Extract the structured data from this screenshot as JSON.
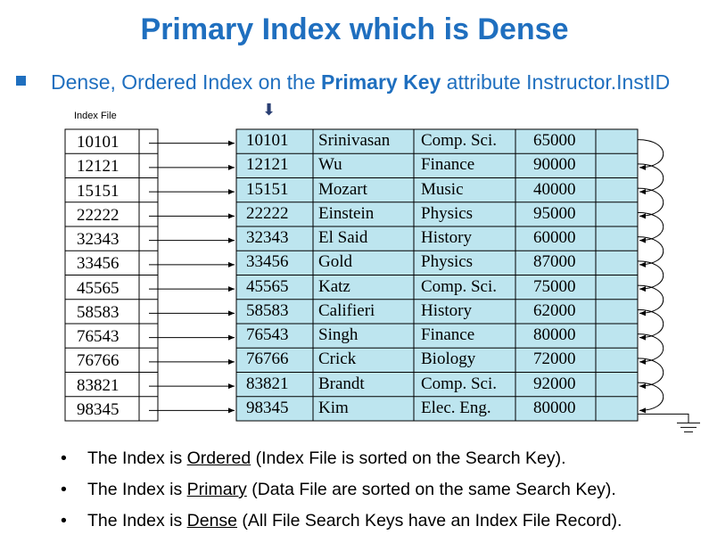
{
  "title": "Primary Index which is Dense",
  "subtitle": {
    "prefix": "Dense, Ordered Index on the ",
    "bold": "Primary Key",
    "suffix": " attribute Instructor.InstID"
  },
  "index_file_label": "Index File",
  "colors": {
    "accent": "#1f6fbf",
    "table_fill": "#bde5ef"
  },
  "index_keys": [
    "10101",
    "12121",
    "15151",
    "22222",
    "32343",
    "33456",
    "45565",
    "58583",
    "76543",
    "76766",
    "83821",
    "98345"
  ],
  "records": [
    [
      "10101",
      "Srinivasan",
      "Comp. Sci.",
      "65000"
    ],
    [
      "12121",
      "Wu",
      "Finance",
      "90000"
    ],
    [
      "15151",
      "Mozart",
      "Music",
      "40000"
    ],
    [
      "22222",
      "Einstein",
      "Physics",
      "95000"
    ],
    [
      "32343",
      "El Said",
      "History",
      "60000"
    ],
    [
      "33456",
      "Gold",
      "Physics",
      "87000"
    ],
    [
      "45565",
      "Katz",
      "Comp. Sci.",
      "75000"
    ],
    [
      "58583",
      "Califieri",
      "History",
      "62000"
    ],
    [
      "76543",
      "Singh",
      "Finance",
      "80000"
    ],
    [
      "76766",
      "Crick",
      "Biology",
      "72000"
    ],
    [
      "83821",
      "Brandt",
      "Comp. Sci.",
      "92000"
    ],
    [
      "98345",
      "Kim",
      "Elec. Eng.",
      "80000"
    ]
  ],
  "bullets": [
    {
      "pre": "The Index is ",
      "u": "Ordered",
      "post": " (Index File is sorted on the Search Key)."
    },
    {
      "pre": "The Index is ",
      "u": "Primary",
      "post": " (Data File are sorted on the same Search Key)."
    },
    {
      "pre": "The Index is ",
      "u": "Dense",
      "post": " (All File Search Keys have an Index File Record)."
    }
  ]
}
